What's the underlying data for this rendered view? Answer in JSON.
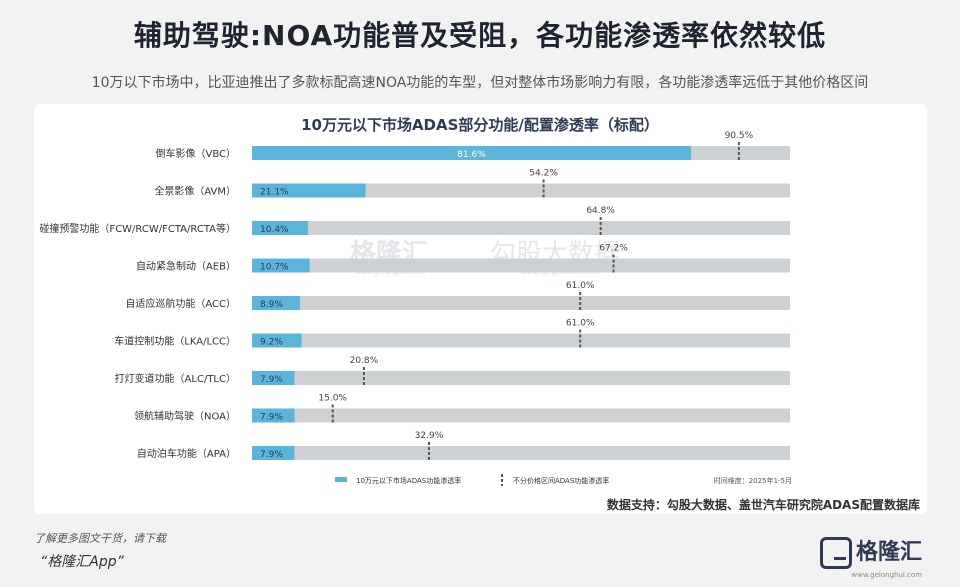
{
  "header": {
    "title": "辅助驾驶:NOA功能普及受阻，各功能渗透率依然较低",
    "subtitle": "10万以下市场中，比亚迪推出了多款标配高速NOA功能的车型，但对整体市场影响力有限，各功能渗透率远低于其他价格区间"
  },
  "chart_data": {
    "type": "bar",
    "title": "10万元以下市场ADAS部分功能/配置渗透率（标配）",
    "categories": [
      "倒车影像（VBC）",
      "全景影像（AVM）",
      "碰撞预警功能（FCW/RCW/FCTA/RCTA等）",
      "自动紧急制动（AEB）",
      "自适应巡航功能（ACC）",
      "车道控制功能（LKA/LCC）",
      "打灯变道功能（ALC/TLC）",
      "领航辅助驾驶（NOA）",
      "自动泊车功能（APA）"
    ],
    "series": [
      {
        "name": "10万元以下市场ADAS功能渗透率",
        "values": [
          81.6,
          21.1,
          10.4,
          10.7,
          8.9,
          9.2,
          7.9,
          7.9,
          7.9
        ],
        "color": "#5bb4d9"
      },
      {
        "name": "不分价格区间ADAS功能渗透率",
        "values": [
          90.5,
          54.2,
          64.8,
          67.2,
          61.0,
          61.0,
          20.8,
          15.0,
          32.9
        ],
        "color": "#555555"
      }
    ],
    "value_labels_a": [
      "81.6%",
      "21.1%",
      "10.4%",
      "10.7%",
      "8.9%",
      "9.2%",
      "7.9%",
      "7.9%",
      "7.9%"
    ],
    "value_labels_b": [
      "90.5%",
      "54.2%",
      "64.8%",
      "67.2%",
      "61.0%",
      "61.0%",
      "20.8%",
      "15.0%",
      "32.9%"
    ],
    "xlim": [
      0,
      100
    ],
    "track_color": "#cdd1d4",
    "time_note": "时间维度：2025年1-5月",
    "legend_position": "bottom"
  },
  "watermark": {
    "brand": "格隆汇",
    "brand_url": "www.gelonghui.com",
    "partner": "勾股大数据",
    "partner_url": "www.gogudata.com"
  },
  "source": "数据支持：勾股大数据、盖世汽车研究院ADAS配置数据库",
  "footer": {
    "note": "了解更多图文干货，请下载",
    "app": "“格隆汇App”",
    "brand": "格隆汇",
    "brand_url": "www.gelonghui.com"
  }
}
